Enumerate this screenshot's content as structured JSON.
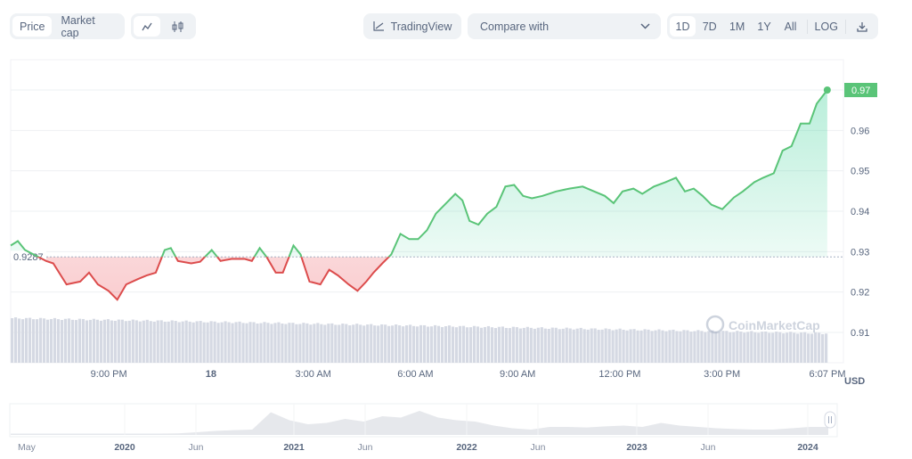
{
  "toolbar": {
    "metric_tabs": [
      "Price",
      "Market cap"
    ],
    "chart_type_icons": [
      "line-chart-icon",
      "candlestick-icon"
    ],
    "tradingview_label": "TradingView",
    "compare_placeholder": "Compare with",
    "ranges": [
      "1D",
      "7D",
      "1M",
      "1Y",
      "All"
    ],
    "log_label": "LOG",
    "download_icon": "download-icon"
  },
  "colors": {
    "up": "#16c784",
    "up_line": "#5ac478",
    "down": "#dc4c4c",
    "grid": "#eef0f3",
    "volume": "#d5d9e3",
    "navigator": "#e6e8ec"
  },
  "watermark": "CoinMarketCap",
  "chart_data": {
    "type": "line",
    "title": "",
    "xlabel": "",
    "ylabel": "USD",
    "x_unit": "hours since 6:07 PM (17th)",
    "xlim": [
      0,
      24
    ],
    "ylim": [
      0.9025,
      0.9775
    ],
    "y_ticks": [
      0.91,
      0.92,
      0.93,
      0.94,
      0.95,
      0.96,
      0.97
    ],
    "y_tick_labels": [
      "0.91",
      "0.92",
      "0.93",
      "0.94",
      "0.95",
      "0.96",
      "0.97"
    ],
    "x_ticks": [
      2.88,
      5.88,
      8.88,
      11.88,
      14.88,
      17.88,
      20.88,
      24
    ],
    "x_tick_labels": [
      "9:00 PM",
      "18",
      "3:00 AM",
      "6:00 AM",
      "9:00 AM",
      "12:00 PM",
      "3:00 PM",
      "6:07 PM"
    ],
    "baseline": 0.9287,
    "baseline_label": "0.9287",
    "current_label": "0.97",
    "grid": true,
    "series": [
      {
        "name": "Price",
        "x": [
          0,
          0.21,
          0.42,
          1.04,
          1.25,
          1.64,
          2.04,
          2.3,
          2.56,
          2.87,
          3.13,
          3.39,
          3.73,
          3.99,
          4.26,
          4.52,
          4.7,
          4.91,
          5.3,
          5.56,
          5.9,
          6.16,
          6.48,
          6.87,
          7.08,
          7.31,
          7.52,
          7.78,
          7.99,
          8.3,
          8.51,
          8.77,
          9.09,
          9.35,
          9.61,
          9.92,
          10.18,
          10.44,
          10.65,
          10.91,
          11.17,
          11.44,
          11.7,
          11.96,
          12.22,
          12.48,
          12.74,
          13.05,
          13.26,
          13.47,
          13.73,
          13.99,
          14.26,
          14.52,
          14.78,
          15.04,
          15.3,
          15.61,
          16.01,
          16.4,
          16.79,
          17.13,
          17.44,
          17.7,
          17.96,
          18.28,
          18.54,
          18.88,
          19.22,
          19.53,
          19.79,
          20.05,
          20.31,
          20.57,
          20.89,
          21.23,
          21.49,
          21.83,
          22.09,
          22.4,
          22.66,
          22.92,
          23.19,
          23.45,
          23.66,
          23.97
        ],
        "y": [
          0.9315,
          0.9326,
          0.9304,
          0.9277,
          0.9271,
          0.9219,
          0.9226,
          0.9248,
          0.9219,
          0.9203,
          0.9181,
          0.9219,
          0.9232,
          0.9241,
          0.9248,
          0.9304,
          0.9309,
          0.9277,
          0.9271,
          0.9275,
          0.9304,
          0.9277,
          0.9282,
          0.9282,
          0.9277,
          0.9309,
          0.9286,
          0.9248,
          0.9248,
          0.9315,
          0.9293,
          0.9226,
          0.9219,
          0.9255,
          0.9241,
          0.9219,
          0.9203,
          0.9226,
          0.9248,
          0.9271,
          0.9293,
          0.9344,
          0.9331,
          0.9331,
          0.9353,
          0.9394,
          0.9416,
          0.9443,
          0.9427,
          0.9376,
          0.9367,
          0.9394,
          0.9411,
          0.9461,
          0.9465,
          0.9438,
          0.9432,
          0.9438,
          0.9449,
          0.9456,
          0.9461,
          0.9449,
          0.9438,
          0.942,
          0.9449,
          0.9456,
          0.9443,
          0.9461,
          0.9472,
          0.9483,
          0.9449,
          0.9456,
          0.9438,
          0.9416,
          0.9405,
          0.9434,
          0.9449,
          0.9472,
          0.9483,
          0.9494,
          0.955,
          0.9561,
          0.9617,
          0.9617,
          0.9666,
          0.97
        ]
      }
    ],
    "volume_relative": {
      "start": 1.0,
      "end": 0.66,
      "bars": 230
    },
    "navigator": {
      "x_tick_labels": [
        "May",
        "2020",
        "Jun",
        "2021",
        "Jun",
        "2022",
        "Jun",
        "2023",
        "Jun",
        "2024"
      ],
      "bold_ticks": [
        "2020",
        "2021",
        "2022",
        "2023",
        "2024"
      ],
      "values": [
        0.05,
        0.05,
        0.05,
        0.05,
        0.05,
        0.05,
        0.05,
        0.05,
        0.05,
        0.06,
        0.1,
        0.15,
        0.18,
        0.2,
        0.85,
        0.55,
        0.4,
        0.45,
        0.6,
        0.5,
        0.7,
        0.65,
        0.9,
        0.65,
        0.55,
        0.5,
        0.35,
        0.25,
        0.2,
        0.3,
        0.3,
        0.28,
        0.32,
        0.35,
        0.3,
        0.45,
        0.35,
        0.3,
        0.25,
        0.22,
        0.2,
        0.2,
        0.25,
        0.3,
        0.3
      ]
    }
  }
}
